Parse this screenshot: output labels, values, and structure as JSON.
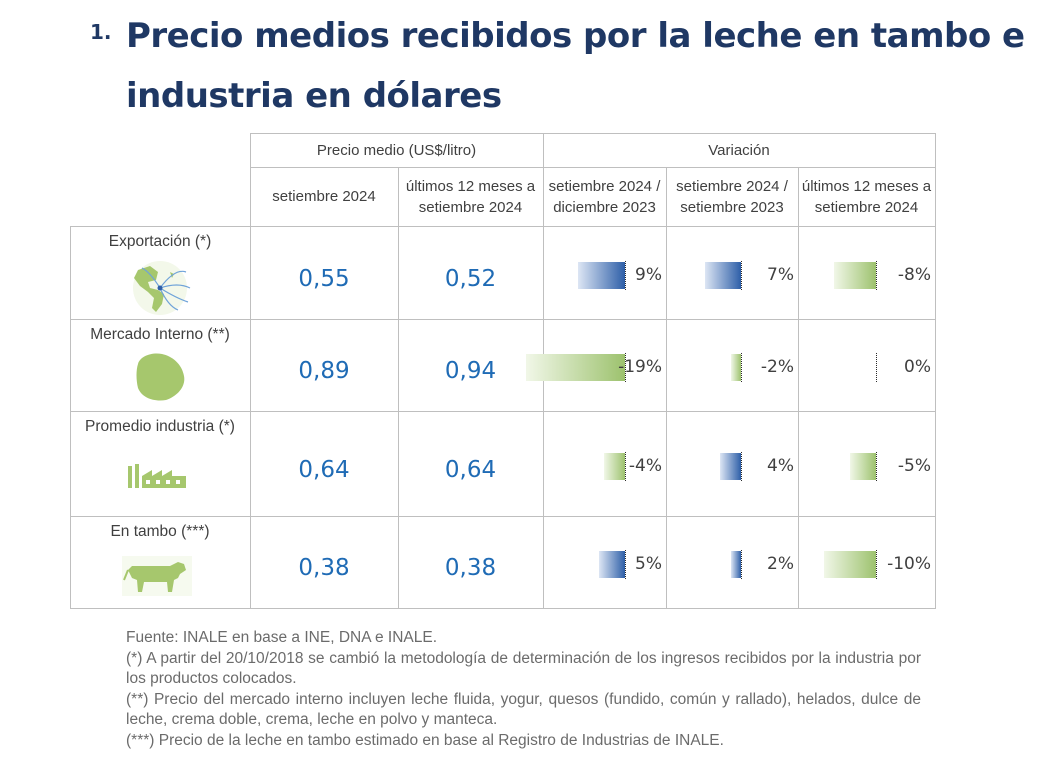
{
  "title": {
    "number": "1.",
    "text": "Precio medios recibidos por la leche en tambo e industria en dólares"
  },
  "table": {
    "group_headers": [
      "Precio medio (US$/litro)",
      "Variación"
    ],
    "column_headers": [
      "setiembre 2024",
      "últimos 12 meses a setiembre 2024",
      "setiembre 2024 / diciembre 2023",
      "setiembre 2024 / setiembre 2023",
      "últimos 12 meses a setiembre 2024"
    ],
    "rows": [
      {
        "label": "Exportación (*)",
        "icon": "globe-americas-icon",
        "price_sep": "0,55",
        "price_12m": "0,52",
        "variations": [
          {
            "text": "9%",
            "value": 9
          },
          {
            "text": "7%",
            "value": 7
          },
          {
            "text": "-8%",
            "value": -8
          }
        ]
      },
      {
        "label": "Mercado Interno (**)",
        "icon": "uruguay-map-icon",
        "price_sep": "0,89",
        "price_12m": "0,94",
        "variations": [
          {
            "text": "-19%",
            "value": -19
          },
          {
            "text": "-2%",
            "value": -2
          },
          {
            "text": "0%",
            "value": 0
          }
        ]
      },
      {
        "label": "Promedio industria (*)",
        "icon": "factory-icon",
        "price_sep": "0,64",
        "price_12m": "0,64",
        "variations": [
          {
            "text": "-4%",
            "value": -4
          },
          {
            "text": "4%",
            "value": 4
          },
          {
            "text": "-5%",
            "value": -5
          }
        ]
      },
      {
        "label": "En tambo (***)",
        "icon": "cow-icon",
        "price_sep": "0,38",
        "price_12m": "0,38",
        "variations": [
          {
            "text": "5%",
            "value": 5
          },
          {
            "text": "2%",
            "value": 2
          },
          {
            "text": "-10%",
            "value": -10
          }
        ]
      }
    ]
  },
  "notes": [
    "Fuente: INALE en base a INE, DNA e INALE.",
    "(*) A partir del 20/10/2018 se cambió la metodología de determinación de los ingresos recibidos por la industria por los productos colocados.",
    "(**) Precio del mercado interno incluyen leche fluida, yogur, quesos (fundido, común y rallado), helados, dulce de leche, crema doble, crema, leche en polvo y manteca.",
    "(***) Precio de la leche en tambo estimado en base al Registro de Industrias de INALE."
  ],
  "colors": {
    "title": "#1f3864",
    "value": "#1f6bb5",
    "positive_bar": "#2e5fa8",
    "negative_bar": "#9dc26e",
    "text": "#404040"
  }
}
